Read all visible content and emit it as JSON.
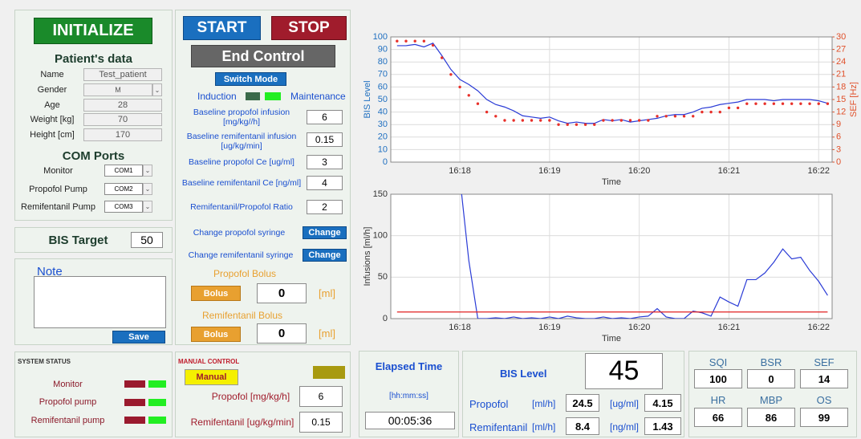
{
  "controls": {
    "initialize": "INITIALIZE",
    "start": "START",
    "stop": "STOP",
    "end_control": "End Control",
    "switch_mode": "Switch Mode",
    "induction": "Induction",
    "maintenance": "Maintenance"
  },
  "patient": {
    "title": "Patient's data",
    "fields": [
      {
        "label": "Name",
        "value": "Test_patient"
      },
      {
        "label": "Gender",
        "value": "M"
      },
      {
        "label": "Age",
        "value": 28
      },
      {
        "label": "Weight [kg]",
        "value": 70
      },
      {
        "label": "Height [cm]",
        "value": 170
      }
    ]
  },
  "com_ports": {
    "title": "COM Ports",
    "ports": [
      {
        "label": "Monitor",
        "value": "COM1"
      },
      {
        "label": "Propofol Pump",
        "value": "COM2"
      },
      {
        "label": "Remifentanil Pump",
        "value": "COM3"
      }
    ]
  },
  "bis_target": {
    "label": "BIS Target",
    "value": 50
  },
  "note": {
    "title": "Note",
    "save": "Save"
  },
  "system_status": {
    "title": "SYSTEM STATUS",
    "items": [
      "Monitor",
      "Propofol pump",
      "Remifentanil pump"
    ]
  },
  "params": [
    {
      "label": "Baseline propofol infusion [mg/kg//h]",
      "value": 6
    },
    {
      "label": "Baseline remifentanil infusion [ug/kg/min]",
      "value": 0.15
    },
    {
      "label": "Baseline propofol Ce [ug/ml]",
      "value": 3
    },
    {
      "label": "Baseline remifentanil Ce [ng/ml]",
      "value": 4
    },
    {
      "label": "Remifentanil/Propofol Ratio",
      "value": 2
    }
  ],
  "syringe": [
    {
      "label": "Change propofol syringe",
      "button": "Change"
    },
    {
      "label": "Change remifentanil syringe",
      "button": "Change"
    }
  ],
  "bolus": [
    {
      "title": "Propofol Bolus",
      "button": "Bolus",
      "value": 0,
      "unit": "[ml]"
    },
    {
      "title": "Remifentanil Bolus",
      "button": "Bolus",
      "value": 0,
      "unit": "[ml]"
    }
  ],
  "manual_control": {
    "title": "MANUAL CONTROL",
    "button": "Manual",
    "fields": [
      {
        "label": "Propofol [mg/kg/h]",
        "value": 6
      },
      {
        "label": "Remifentanil [ug/kg/min]",
        "value": 0.15
      }
    ]
  },
  "elapsed": {
    "title": "Elapsed Time",
    "unit": "[hh:mm:ss]",
    "value": "00:05:36"
  },
  "bis_panel": {
    "title": "BIS Level",
    "value": 45,
    "rows": [
      {
        "label": "Propofol",
        "unit1": "[ml/h]",
        "value1": 24.5,
        "unit2": "[ug/ml]",
        "value2": 4.15
      },
      {
        "label": "Remifentanil",
        "unit1": "[ml/h]",
        "value1": 8.4,
        "unit2": "[ng/ml]",
        "value2": 1.43
      }
    ]
  },
  "vitals": [
    {
      "label": "SQI",
      "value": 100
    },
    {
      "label": "BSR",
      "value": 0
    },
    {
      "label": "SEF",
      "value": 14
    },
    {
      "label": "HR",
      "value": 66
    },
    {
      "label": "MBP",
      "value": 86
    },
    {
      "label": "OS",
      "value": 99
    }
  ],
  "chart_data": [
    {
      "type": "line",
      "xlabel": "Time",
      "ylabel": "BIS Level",
      "y2label": "SEF [Hz]",
      "y_axis_color": "#1f6fc0",
      "y2_axis_color": "#e0502a",
      "grid": true,
      "x": [
        977.3,
        977.4,
        977.5,
        977.6,
        977.7,
        977.8,
        977.9,
        978.0,
        978.1,
        978.2,
        978.3,
        978.4,
        978.5,
        978.6,
        978.7,
        978.8,
        978.9,
        979.0,
        979.1,
        979.2,
        979.3,
        979.4,
        979.5,
        979.6,
        979.7,
        979.8,
        979.9,
        980.0,
        980.1,
        980.2,
        980.3,
        980.4,
        980.5,
        980.6,
        980.7,
        980.8,
        980.9,
        981.0,
        981.1,
        981.2,
        981.3,
        981.4,
        981.5,
        981.6,
        981.7,
        981.8,
        981.9,
        982.0,
        982.1
      ],
      "xlim": [
        977.23,
        982.15
      ],
      "xticks": [
        {
          "value": 978,
          "label": "16:18"
        },
        {
          "value": 979,
          "label": "16:19"
        },
        {
          "value": 980,
          "label": "16:20"
        },
        {
          "value": 981,
          "label": "16:21"
        },
        {
          "value": 982,
          "label": "16:22"
        }
      ],
      "ylim": [
        0,
        100
      ],
      "yticks": [
        0,
        10,
        20,
        30,
        40,
        50,
        60,
        70,
        80,
        90,
        100
      ],
      "y2lim": [
        0,
        30
      ],
      "y2ticks": [
        0,
        3,
        6,
        9,
        12,
        15,
        18,
        21,
        24,
        27,
        30
      ],
      "series": [
        {
          "name": "BIS",
          "color": "#2a3bd6",
          "mode": "line",
          "values": [
            93,
            93,
            94,
            92,
            95,
            85,
            74,
            66,
            62,
            57,
            50,
            46,
            44,
            41,
            37,
            36,
            35,
            36,
            33,
            31,
            32,
            31,
            31,
            34,
            33,
            34,
            32,
            33,
            34,
            35,
            37,
            38,
            38,
            40,
            43,
            44,
            46,
            47,
            48,
            50,
            50,
            50,
            49,
            50,
            50,
            50,
            50,
            49,
            47
          ]
        },
        {
          "name": "SEF",
          "color": "#e8302a",
          "mode": "markers",
          "axis": "y2",
          "values": [
            29,
            29,
            29,
            29,
            28,
            25,
            21,
            18,
            16,
            14,
            12,
            11,
            10,
            10,
            10,
            10,
            10,
            10,
            9,
            9,
            9,
            9,
            9,
            10,
            10,
            10,
            10,
            10,
            10,
            11,
            11,
            11,
            11,
            11,
            12,
            12,
            12,
            13,
            13,
            14,
            14,
            14,
            14,
            14,
            14,
            14,
            14,
            14,
            14
          ]
        }
      ]
    },
    {
      "type": "line",
      "xlabel": "Time",
      "ylabel": "Infusions [ml/h]",
      "y_axis_color": "#333333",
      "grid": true,
      "x": [
        977.3,
        977.4,
        977.5,
        977.6,
        977.7,
        977.8,
        977.9,
        978.0,
        978.1,
        978.2,
        978.3,
        978.4,
        978.5,
        978.6,
        978.7,
        978.8,
        978.9,
        979.0,
        979.1,
        979.2,
        979.3,
        979.4,
        979.5,
        979.6,
        979.7,
        979.8,
        979.9,
        980.0,
        980.1,
        980.2,
        980.3,
        980.4,
        980.5,
        980.6,
        980.7,
        980.8,
        980.9,
        981.0,
        981.1,
        981.2,
        981.3,
        981.4,
        981.5,
        981.6,
        981.7,
        981.8,
        981.9,
        982.0,
        982.1
      ],
      "xlim": [
        977.23,
        982.15
      ],
      "xticks": [
        {
          "value": 978,
          "label": "16:18"
        },
        {
          "value": 979,
          "label": "16:19"
        },
        {
          "value": 980,
          "label": "16:20"
        },
        {
          "value": 981,
          "label": "16:21"
        },
        {
          "value": 982,
          "label": "16:22"
        }
      ],
      "ylim": [
        0,
        150
      ],
      "yticks": [
        0,
        50,
        100,
        150
      ],
      "series": [
        {
          "name": "Propofol",
          "color": "#2a3bd6",
          "mode": "line",
          "values": [
            null,
            null,
            null,
            null,
            null,
            null,
            null,
            170,
            70,
            0,
            0,
            1,
            0,
            2,
            0,
            1,
            0,
            2,
            0,
            3,
            1,
            0,
            0,
            2,
            0,
            1,
            0,
            2,
            3,
            12,
            2,
            0,
            0,
            9,
            7,
            3,
            26,
            20,
            15,
            47,
            47,
            55,
            68,
            84,
            72,
            74,
            58,
            45,
            28
          ]
        },
        {
          "name": "Remifentanil",
          "color": "#e02020",
          "mode": "line",
          "values": [
            8,
            8,
            8,
            8,
            8,
            8,
            8,
            8,
            8,
            8,
            8,
            8,
            8,
            8,
            8,
            8,
            8,
            8,
            8,
            8,
            8,
            8,
            8,
            8,
            8,
            8,
            8,
            8,
            8,
            8,
            8,
            8,
            8,
            8,
            8,
            8,
            8,
            8,
            8,
            8,
            8,
            8,
            8,
            8,
            8,
            8,
            8,
            8,
            8
          ]
        }
      ]
    }
  ]
}
